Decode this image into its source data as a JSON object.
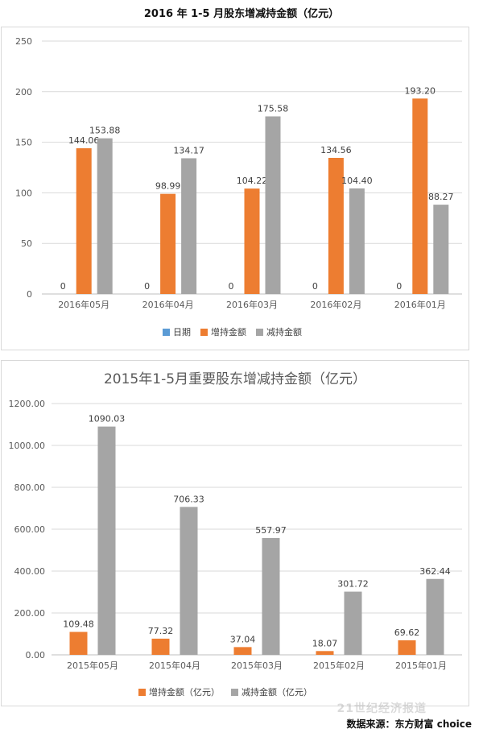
{
  "page_title": "2016 年 1-5 月股东增减持金额（亿元）",
  "source": "数据来源：东方财富 choice",
  "watermark": "21世纪经济报道",
  "colors": {
    "date": "#5b9bd5",
    "increase": "#ed7d31",
    "decrease": "#a5a5a5",
    "grid": "#d9d9d9",
    "axis": "#bfbfbf"
  },
  "chart_data": [
    {
      "type": "bar",
      "title": "",
      "categories": [
        "2016年05月",
        "2016年04月",
        "2016年03月",
        "2016年02月",
        "2016年01月"
      ],
      "series": [
        {
          "name": "日期",
          "values": [
            0,
            0,
            0,
            0,
            0
          ]
        },
        {
          "name": "增持金额",
          "values": [
            144.06,
            98.99,
            104.22,
            134.56,
            193.2
          ]
        },
        {
          "name": "减持金额",
          "values": [
            153.88,
            134.17,
            175.58,
            104.4,
            88.27
          ]
        }
      ],
      "data_labels": [
        [
          "0",
          "0",
          "0",
          "0",
          "0"
        ],
        [
          "144.06",
          "98.99",
          "104.22",
          "134.56",
          "193.20"
        ],
        [
          "153.88",
          "134.17",
          "175.58",
          "104.40",
          "88.27"
        ]
      ],
      "yticks": [
        "0",
        "50",
        "100",
        "150",
        "200",
        "250"
      ],
      "ylim": [
        0,
        250
      ],
      "grid": true,
      "legend_position": "bottom"
    },
    {
      "type": "bar",
      "title": "2015年1-5月重要股东增减持金额（亿元）",
      "categories": [
        "2015年05月",
        "2015年04月",
        "2015年03月",
        "2015年02月",
        "2015年01月"
      ],
      "series": [
        {
          "name": "增持金额（亿元）",
          "values": [
            109.48,
            77.32,
            37.04,
            18.07,
            69.62
          ]
        },
        {
          "name": "减持金额（亿元）",
          "values": [
            1090.03,
            706.33,
            557.97,
            301.72,
            362.44
          ]
        }
      ],
      "data_labels": [
        [
          "109.48",
          "77.32",
          "37.04",
          "18.07",
          "69.62"
        ],
        [
          "1090.03",
          "706.33",
          "557.97",
          "301.72",
          "362.44"
        ]
      ],
      "yticks": [
        "0.00",
        "200.00",
        "400.00",
        "600.00",
        "800.00",
        "1000.00",
        "1200.00"
      ],
      "ylim": [
        0,
        1200
      ],
      "grid": true,
      "legend_position": "bottom"
    }
  ]
}
